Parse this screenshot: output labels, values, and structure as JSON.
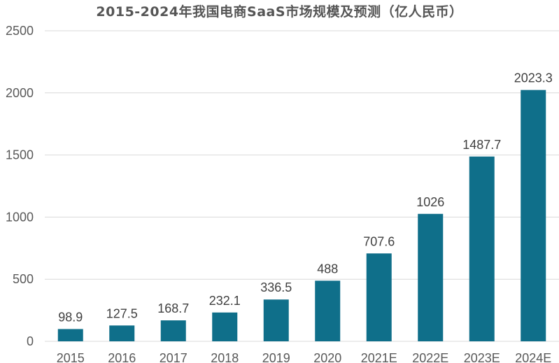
{
  "chart_data": {
    "type": "bar",
    "title": "2015-2024年我国电商SaaS市场规模及预测（亿人民币）",
    "categories": [
      "2015",
      "2016",
      "2017",
      "2018",
      "2019",
      "2020",
      "2021E",
      "2022E",
      "2023E",
      "2024E"
    ],
    "values": [
      98.9,
      127.5,
      168.7,
      232.1,
      336.5,
      488,
      707.6,
      1026,
      1487.7,
      2023.3
    ],
    "value_labels": [
      "98.9",
      "127.5",
      "168.7",
      "232.1",
      "336.5",
      "488",
      "707.6",
      "1026",
      "1487.7",
      "2023.3"
    ],
    "y_ticks": [
      0,
      500,
      1000,
      1500,
      2000,
      2500
    ],
    "y_tick_labels": [
      "0",
      "500",
      "1000",
      "1500",
      "2000",
      "2500"
    ],
    "ylim": [
      0,
      2500
    ],
    "grid": true,
    "legend": "none",
    "bar_color": "#0f6f8a",
    "grid_color": "#d9d9d9"
  }
}
